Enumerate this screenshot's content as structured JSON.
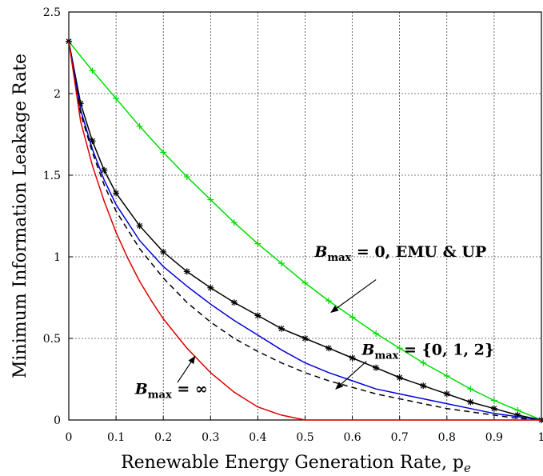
{
  "chart_data": {
    "type": "line",
    "title": "",
    "xlabel": "Renewable Energy Generation Rate, p",
    "xlabel_subscript": "e",
    "ylabel": "Minimum Information Leakage Rate",
    "xlim": [
      0,
      1
    ],
    "ylim": [
      0,
      2.5
    ],
    "x_ticks": [
      "0",
      "0.1",
      "0.2",
      "0.3",
      "0.4",
      "0.5",
      "0.6",
      "0.7",
      "0.8",
      "0.9",
      "1"
    ],
    "y_ticks": [
      "0",
      "0.5",
      "1",
      "1.5",
      "2",
      "2.5"
    ],
    "grid": true,
    "colors": {
      "green": "#00dd00",
      "black": "#000000",
      "blue": "#0000dd",
      "dashed": "#000000",
      "red": "#dd0000"
    },
    "series": [
      {
        "key": "green",
        "style": "solid-plus-markers",
        "x": [
          0,
          0.05,
          0.1,
          0.15,
          0.2,
          0.25,
          0.3,
          0.35,
          0.4,
          0.45,
          0.5,
          0.55,
          0.6,
          0.65,
          0.7,
          0.75,
          0.8,
          0.85,
          0.9,
          0.95,
          1.0
        ],
        "y": [
          2.32,
          2.14,
          1.97,
          1.8,
          1.64,
          1.49,
          1.35,
          1.21,
          1.08,
          0.96,
          0.84,
          0.73,
          0.63,
          0.53,
          0.44,
          0.35,
          0.27,
          0.19,
          0.12,
          0.06,
          0.0
        ]
      },
      {
        "key": "black",
        "style": "solid-star-markers",
        "x": [
          0,
          0.025,
          0.05,
          0.075,
          0.1,
          0.15,
          0.2,
          0.25,
          0.3,
          0.35,
          0.4,
          0.45,
          0.5,
          0.55,
          0.6,
          0.65,
          0.7,
          0.75,
          0.8,
          0.85,
          0.9,
          0.95,
          1.0
        ],
        "y": [
          2.32,
          1.94,
          1.71,
          1.53,
          1.39,
          1.19,
          1.03,
          0.91,
          0.81,
          0.72,
          0.64,
          0.56,
          0.5,
          0.44,
          0.38,
          0.32,
          0.26,
          0.21,
          0.16,
          0.11,
          0.07,
          0.03,
          0.0
        ]
      },
      {
        "key": "blue",
        "style": "solid",
        "x": [
          0,
          0.025,
          0.05,
          0.075,
          0.1,
          0.15,
          0.2,
          0.25,
          0.3,
          0.35,
          0.4,
          0.45,
          0.5,
          0.55,
          0.6,
          0.65,
          0.7,
          0.75,
          0.8,
          0.85,
          0.9,
          0.95,
          1.0
        ],
        "y": [
          2.32,
          1.9,
          1.66,
          1.47,
          1.32,
          1.1,
          0.94,
          0.82,
          0.71,
          0.61,
          0.52,
          0.43,
          0.35,
          0.29,
          0.24,
          0.19,
          0.16,
          0.13,
          0.1,
          0.07,
          0.04,
          0.02,
          0.0
        ]
      },
      {
        "key": "dashed",
        "style": "dashed",
        "x": [
          0,
          0.025,
          0.05,
          0.075,
          0.1,
          0.15,
          0.2,
          0.25,
          0.3,
          0.35,
          0.4,
          0.45,
          0.5,
          0.55,
          0.6,
          0.65,
          0.7,
          0.75,
          0.8,
          0.85,
          0.9,
          0.95,
          1.0
        ],
        "y": [
          2.32,
          1.88,
          1.64,
          1.44,
          1.28,
          1.05,
          0.87,
          0.72,
          0.6,
          0.5,
          0.42,
          0.35,
          0.29,
          0.24,
          0.2,
          0.16,
          0.13,
          0.1,
          0.07,
          0.05,
          0.03,
          0.01,
          0.0
        ]
      },
      {
        "key": "red",
        "style": "solid",
        "x": [
          0,
          0.025,
          0.05,
          0.075,
          0.1,
          0.125,
          0.15,
          0.175,
          0.2,
          0.25,
          0.3,
          0.35,
          0.4,
          0.45,
          0.5,
          0.6,
          0.7,
          0.8,
          0.9,
          1.0
        ],
        "y": [
          2.32,
          1.83,
          1.56,
          1.34,
          1.15,
          0.99,
          0.85,
          0.73,
          0.62,
          0.44,
          0.29,
          0.17,
          0.08,
          0.03,
          0.0,
          0.0,
          0.0,
          0.0,
          0.0,
          0.0
        ]
      }
    ],
    "annotations": [
      {
        "key": "green",
        "prefix": "B",
        "sub": "max",
        "text": " = 0, EMU & UP",
        "at": [
          0.52,
          1.0
        ],
        "arrow_from": [
          0.65,
          0.86
        ],
        "arrow_to": [
          0.555,
          0.66
        ]
      },
      {
        "key": "blue",
        "prefix": "B",
        "sub": "max",
        "text": " = {0, 1, 2}",
        "at": [
          0.62,
          0.4
        ],
        "arrow_from": [
          0.63,
          0.36
        ],
        "arrow_to": [
          0.565,
          0.19
        ]
      },
      {
        "key": "red",
        "prefix": "B",
        "sub": "max",
        "text": " = ∞",
        "at": [
          0.14,
          0.16
        ],
        "arrow_from": [
          0.23,
          0.23
        ],
        "arrow_to": [
          0.267,
          0.39
        ]
      }
    ]
  }
}
